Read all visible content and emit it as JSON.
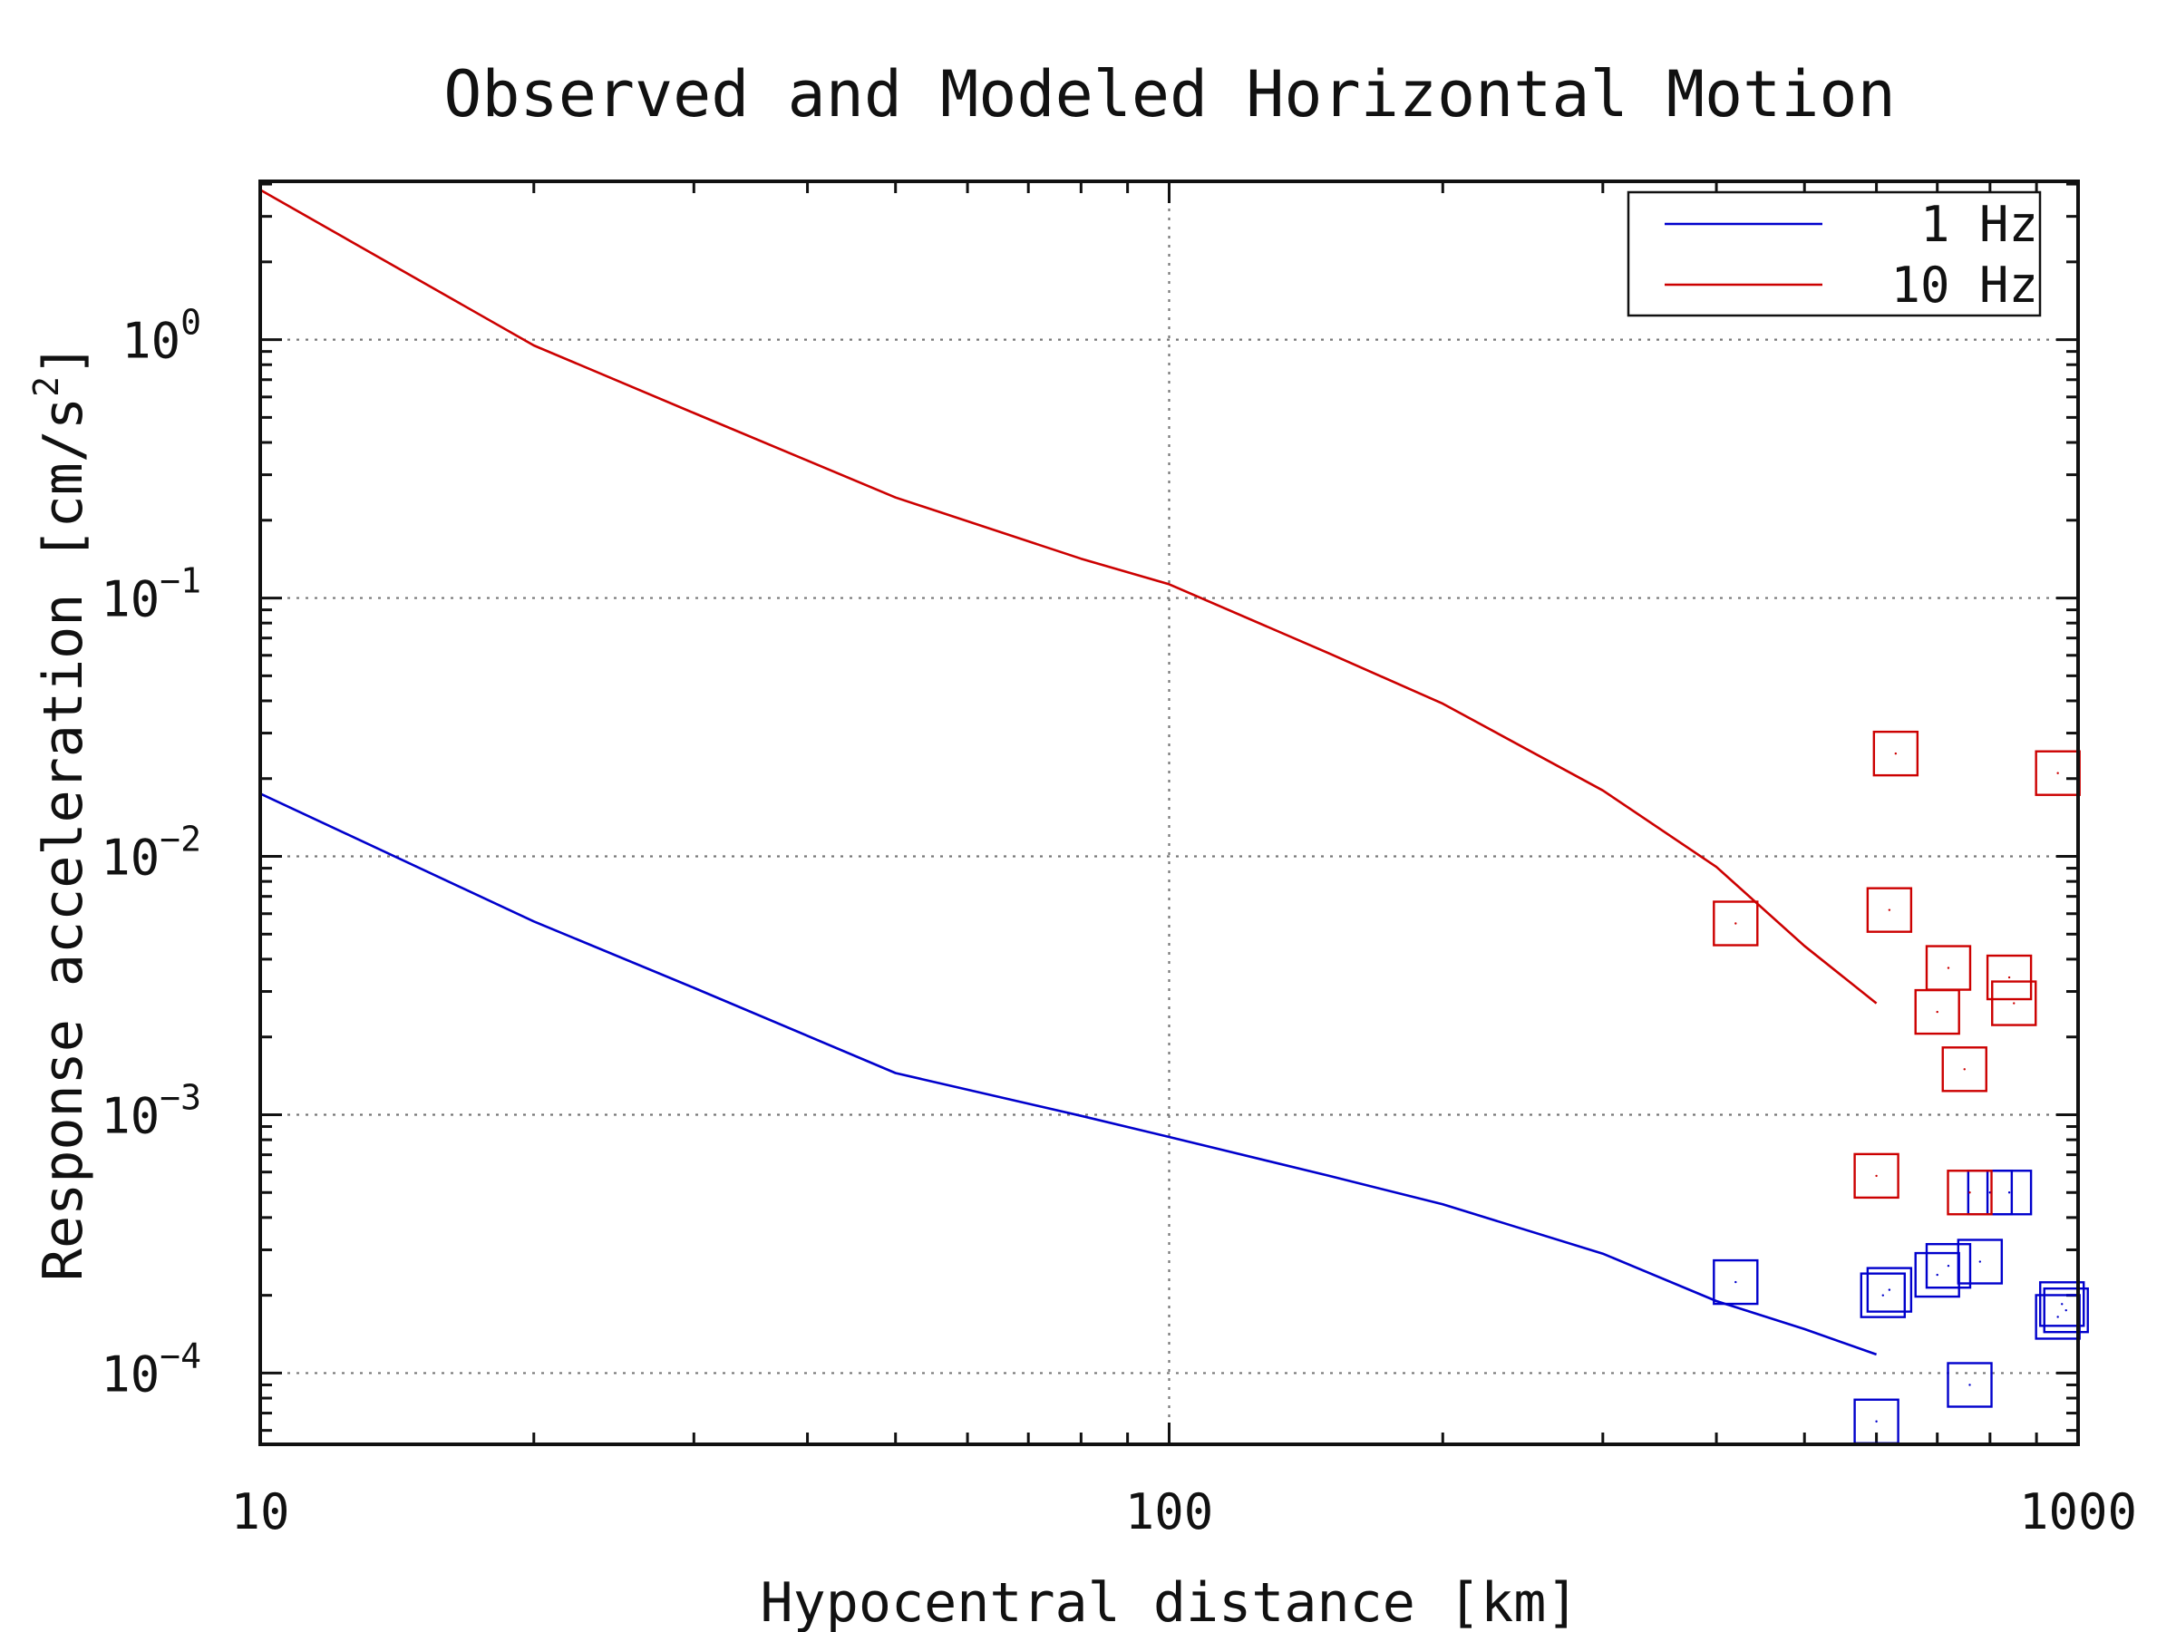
{
  "chart_data": {
    "type": "line",
    "title": "Observed and Modeled Horizontal Motion",
    "xlabel": "Hypocentral distance [km]",
    "ylabel": "Response acceleration [cm/s",
    "ylabel_sup": "2",
    "ylabel_close": "]",
    "xscale": "log",
    "yscale": "log",
    "xlim": [
      10,
      1000
    ],
    "ylim": [
      5.3e-05,
      4.1
    ],
    "grid": true,
    "legend_position": "top-right",
    "x_ticks": [
      {
        "value": 10,
        "label": "10"
      },
      {
        "value": 100,
        "label": "100"
      },
      {
        "value": 1000,
        "label": "1000"
      }
    ],
    "y_ticks": [
      {
        "value": 1,
        "base": "10",
        "exp": "0"
      },
      {
        "value": 0.1,
        "base": "10",
        "exp": "−1"
      },
      {
        "value": 0.01,
        "base": "10",
        "exp": "−2"
      },
      {
        "value": 0.001,
        "base": "10",
        "exp": "−3"
      },
      {
        "value": 0.0001,
        "base": "10",
        "exp": "−4"
      }
    ],
    "series": [
      {
        "name": "1 Hz",
        "color": "#0000cc",
        "x": [
          10,
          20,
          30,
          50,
          80,
          100,
          150,
          200,
          300,
          400,
          500,
          600
        ],
        "y": [
          0.0175,
          0.0056,
          0.0031,
          0.00145,
          0.00099,
          0.00082,
          0.00058,
          0.00045,
          0.00029,
          0.00019,
          0.000148,
          0.000118
        ],
        "observed": {
          "x": [
            420,
            600,
            610,
            620,
            700,
            720,
            760,
            780,
            800,
            840,
            950,
            960,
            970
          ],
          "y": [
            0.000225,
            6.5e-05,
            0.0002,
            0.00021,
            0.00024,
            0.00026,
            9e-05,
            0.00027,
            0.0005,
            0.0005,
            0.000165,
            0.000185,
            0.000175
          ]
        }
      },
      {
        "name": "10 Hz",
        "color": "#cc0000",
        "x": [
          10,
          20,
          30,
          50,
          80,
          100,
          150,
          200,
          300,
          400,
          500,
          600
        ],
        "y": [
          3.8,
          0.95,
          0.52,
          0.245,
          0.142,
          0.113,
          0.061,
          0.039,
          0.018,
          0.0091,
          0.0045,
          0.0027
        ],
        "observed": {
          "x": [
            420,
            600,
            620,
            630,
            700,
            720,
            750,
            760,
            840,
            850,
            950
          ],
          "y": [
            0.0055,
            0.00058,
            0.0062,
            0.025,
            0.0025,
            0.0037,
            0.0015,
            0.0005,
            0.0034,
            0.0027,
            0.021
          ]
        }
      }
    ]
  }
}
